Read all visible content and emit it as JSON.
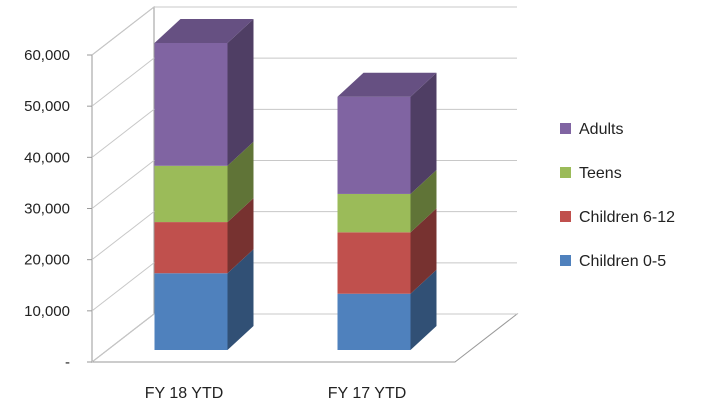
{
  "chart_data": {
    "type": "bar",
    "stacked": true,
    "three_d": true,
    "categories": [
      "FY 18 YTD",
      "FY 17 YTD"
    ],
    "series": [
      {
        "name": "Children 0-5",
        "values": [
          15000,
          11000
        ],
        "color": "#4f81bd"
      },
      {
        "name": "Children 6-12",
        "values": [
          10000,
          12000
        ],
        "color": "#c0504d"
      },
      {
        "name": "Teens",
        "values": [
          11000,
          7500
        ],
        "color": "#9bbb59"
      },
      {
        "name": "Adults",
        "values": [
          24000,
          19000
        ],
        "color": "#8064a2"
      }
    ],
    "ylim": [
      0,
      60000
    ],
    "yticks": [
      {
        "value": 0,
        "label": "-"
      },
      {
        "value": 10000,
        "label": "10,000"
      },
      {
        "value": 20000,
        "label": "20,000"
      },
      {
        "value": 30000,
        "label": "30,000"
      },
      {
        "value": 40000,
        "label": "40,000"
      },
      {
        "value": 50000,
        "label": "50,000"
      },
      {
        "value": 60000,
        "label": "60,000"
      }
    ],
    "grid": true,
    "legend": {
      "placement": "right",
      "order": [
        "Adults",
        "Teens",
        "Children 6-12",
        "Children 0-5"
      ]
    }
  }
}
